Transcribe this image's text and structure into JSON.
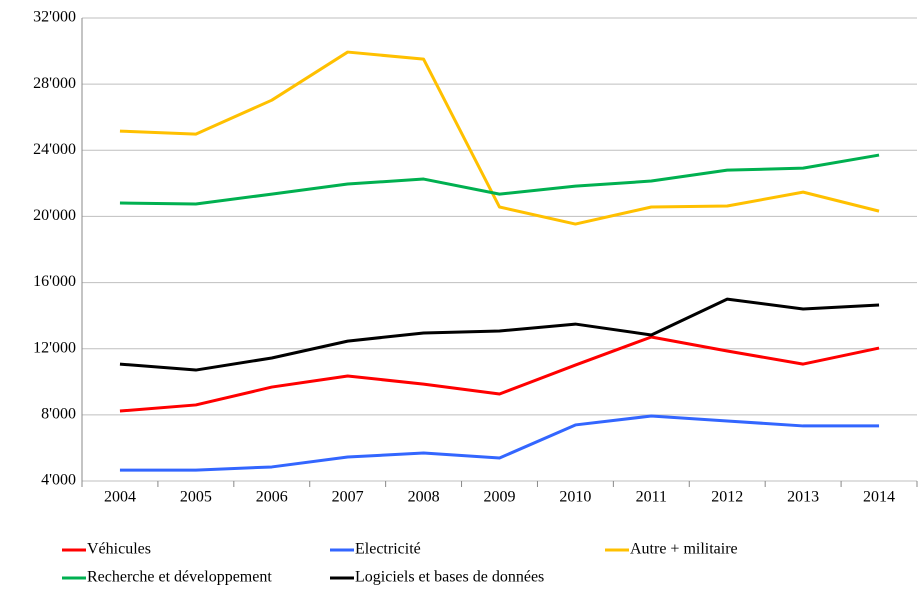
{
  "chart_data": {
    "type": "line",
    "categories": [
      "2004",
      "2005",
      "2006",
      "2007",
      "2008",
      "2009",
      "2010",
      "2011",
      "2012",
      "2013",
      "2014"
    ],
    "series": [
      {
        "name": "Véhicules",
        "color": "#ff0000",
        "values": [
          8230,
          8600,
          9680,
          10350,
          9860,
          9260,
          11010,
          12710,
          11860,
          11070,
          12040
        ]
      },
      {
        "name": "Electricité",
        "color": "#3366ff",
        "values": [
          4660,
          4660,
          4850,
          5450,
          5690,
          5390,
          7390,
          7930,
          7630,
          7330,
          7330
        ]
      },
      {
        "name": "Autre + militaire",
        "color": "#ffc000",
        "values": [
          25160,
          24980,
          27030,
          29940,
          29510,
          20570,
          19540,
          20570,
          20630,
          21470,
          20320
        ]
      },
      {
        "name": "Recherche et développement",
        "color": "#00b050",
        "values": [
          20810,
          20750,
          21350,
          21960,
          22260,
          21350,
          21830,
          22140,
          22800,
          22920,
          23710
        ]
      },
      {
        "name": "Logiciels et bases de données",
        "color": "#000000",
        "values": [
          11070,
          10710,
          11440,
          12460,
          12950,
          13070,
          13490,
          12830,
          15000,
          14400,
          14640
        ]
      }
    ],
    "ylim": [
      4000,
      32000
    ],
    "yticks": [
      {
        "value": 4000,
        "label": "4'000"
      },
      {
        "value": 8000,
        "label": "8'000"
      },
      {
        "value": 12000,
        "label": "12'000"
      },
      {
        "value": 16000,
        "label": "16'000"
      },
      {
        "value": 20000,
        "label": "20'000"
      },
      {
        "value": 24000,
        "label": "24'000"
      },
      {
        "value": 28000,
        "label": "28'000"
      },
      {
        "value": 32000,
        "label": "32'000"
      }
    ],
    "grid": true,
    "legend": "bottom"
  }
}
